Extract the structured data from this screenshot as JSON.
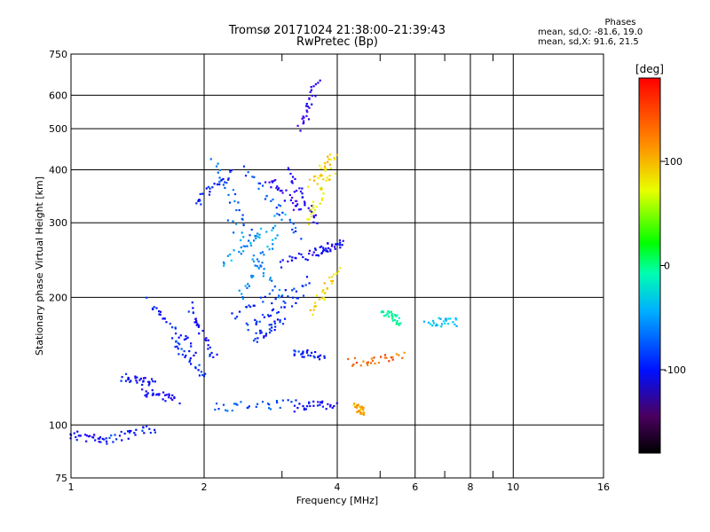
{
  "title_line1": "Tromsø 20171024 21:38:00–21:39:43",
  "title_line2": "RwPretec (Bp)",
  "phases": {
    "heading": "Phases",
    "line_o": "mean, sd,O: -81.6, 19.0",
    "line_x": "mean, sd,X:  91.6, 21.5"
  },
  "chart_data": {
    "type": "scatter",
    "xlabel": "Frequency [MHz]",
    "ylabel": "Stationary phase Virtual Height [km]",
    "x_scale": "log",
    "y_scale": "log",
    "xlim": [
      1,
      16
    ],
    "ylim": [
      75,
      750
    ],
    "xticks": [
      1,
      2,
      4,
      6,
      8,
      10,
      16
    ],
    "yticks": [
      75,
      100,
      200,
      300,
      400,
      500,
      600,
      750
    ],
    "grid": true,
    "colorbar": {
      "label": "[deg]",
      "range": [
        -180,
        180
      ],
      "ticks": [
        100,
        0,
        -100
      ]
    },
    "traces": [
      {
        "x": [
          1.0,
          1.2
        ],
        "y": [
          95,
          92
        ],
        "phase": -110
      },
      {
        "x": [
          1.2,
          1.55
        ],
        "y": [
          92,
          98
        ],
        "phase": -100
      },
      {
        "x": [
          1.3,
          1.55
        ],
        "y": [
          130,
          125
        ],
        "phase": -105
      },
      {
        "x": [
          1.45,
          1.75
        ],
        "y": [
          120,
          115
        ],
        "phase": -110
      },
      {
        "x": [
          1.5,
          1.9
        ],
        "y": [
          195,
          150
        ],
        "phase": -100
      },
      {
        "x": [
          1.7,
          2.0
        ],
        "y": [
          160,
          130
        ],
        "phase": -95
      },
      {
        "x": [
          1.85,
          2.1
        ],
        "y": [
          190,
          145
        ],
        "phase": -105
      },
      {
        "x": [
          1.9,
          2.3
        ],
        "y": [
          330,
          395
        ],
        "phase": -100
      },
      {
        "x": [
          2.1,
          2.6
        ],
        "y": [
          420,
          270
        ],
        "phase": -80
      },
      {
        "x": [
          2.2,
          3.0
        ],
        "y": [
          240,
          310
        ],
        "phase": -60
      },
      {
        "x": [
          2.3,
          3.0
        ],
        "y": [
          300,
          200
        ],
        "phase": -70
      },
      {
        "x": [
          2.4,
          2.9
        ],
        "y": [
          200,
          280
        ],
        "phase": -65
      },
      {
        "x": [
          2.5,
          3.3
        ],
        "y": [
          400,
          280
        ],
        "phase": -85
      },
      {
        "x": [
          2.8,
          3.3
        ],
        "y": [
          380,
          320
        ],
        "phase": -120
      },
      {
        "x": [
          3.1,
          3.6
        ],
        "y": [
          400,
          300
        ],
        "phase": -115
      },
      {
        "x": [
          3.3,
          3.6
        ],
        "y": [
          500,
          640
        ],
        "phase": -120
      },
      {
        "x": [
          2.3,
          3.5
        ],
        "y": [
          180,
          220
        ],
        "phase": -95
      },
      {
        "x": [
          2.5,
          3.3
        ],
        "y": [
          170,
          200
        ],
        "phase": -95
      },
      {
        "x": [
          2.6,
          3.0
        ],
        "y": [
          160,
          175
        ],
        "phase": -100
      },
      {
        "x": [
          2.1,
          3.2
        ],
        "y": [
          110,
          112
        ],
        "phase": -85
      },
      {
        "x": [
          3.2,
          4.0
        ],
        "y": [
          110,
          112
        ],
        "phase": -110
      },
      {
        "x": [
          3.0,
          3.8
        ],
        "y": [
          240,
          260
        ],
        "phase": -110
      },
      {
        "x": [
          3.4,
          3.9
        ],
        "y": [
          300,
          400
        ],
        "phase": 110
      },
      {
        "x": [
          3.5,
          3.95
        ],
        "y": [
          370,
          440
        ],
        "phase": 120
      },
      {
        "x": [
          3.5,
          4.0
        ],
        "y": [
          185,
          230
        ],
        "phase": 115
      },
      {
        "x": [
          3.2,
          3.7
        ],
        "y": [
          150,
          145
        ],
        "phase": -100
      },
      {
        "x": [
          3.7,
          4.1
        ],
        "y": [
          260,
          270
        ],
        "phase": -110
      },
      {
        "x": [
          4.3,
          5.6
        ],
        "y": [
          140,
          145
        ],
        "phase": 150
      },
      {
        "x": [
          5.1,
          5.6
        ],
        "y": [
          185,
          175
        ],
        "phase": -10
      },
      {
        "x": [
          6.4,
          7.5
        ],
        "y": [
          175,
          175
        ],
        "phase": -50
      },
      {
        "x": [
          4.4,
          4.6
        ],
        "y": [
          110,
          108
        ],
        "phase": 130
      }
    ]
  }
}
